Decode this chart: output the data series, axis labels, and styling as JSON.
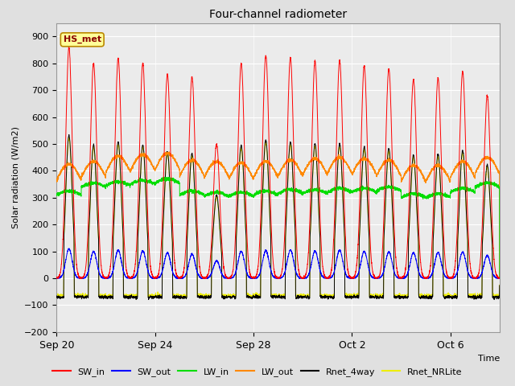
{
  "title": "Four-channel radiometer",
  "ylabel": "Solar radiation (W/m2)",
  "xlabel": "Time",
  "station_label": "HS_met",
  "ylim": [
    -200,
    950
  ],
  "yticks": [
    -200,
    -100,
    0,
    100,
    200,
    300,
    400,
    500,
    600,
    700,
    800,
    900
  ],
  "xtick_labels": [
    "Sep 20",
    "Sep 24",
    "Sep 28",
    "Oct 2",
    "Oct 6"
  ],
  "xtick_positions": [
    0,
    4,
    8,
    12,
    16
  ],
  "xlim": [
    0,
    18
  ],
  "bg_color": "#e0e0e0",
  "plot_bg_color": "#ebebeb",
  "line_colors": {
    "SW_in": "#ff0000",
    "SW_out": "#0000ff",
    "LW_in": "#00dd00",
    "LW_out": "#ff8800",
    "Rnet_4way": "#000000",
    "Rnet_NRLite": "#eeee00"
  },
  "n_days": 18,
  "points_per_day": 288,
  "SW_in_peaks": [
    860,
    800,
    820,
    800,
    760,
    750,
    500,
    800,
    830,
    820,
    810,
    810,
    790,
    780,
    740,
    745,
    770,
    680
  ],
  "SW_out_peaks": [
    110,
    100,
    105,
    102,
    95,
    90,
    65,
    100,
    103,
    105,
    102,
    104,
    100,
    98,
    95,
    96,
    98,
    85
  ],
  "LW_in_base": [
    310,
    340,
    345,
    350,
    355,
    310,
    305,
    305,
    310,
    315,
    315,
    320,
    320,
    325,
    300,
    300,
    320,
    340
  ],
  "LW_out_base": [
    365,
    375,
    395,
    400,
    405,
    380,
    375,
    370,
    375,
    380,
    385,
    390,
    385,
    380,
    360,
    360,
    375,
    390
  ],
  "Rnet_night": -70,
  "Rnet_NRLite_night": -60
}
